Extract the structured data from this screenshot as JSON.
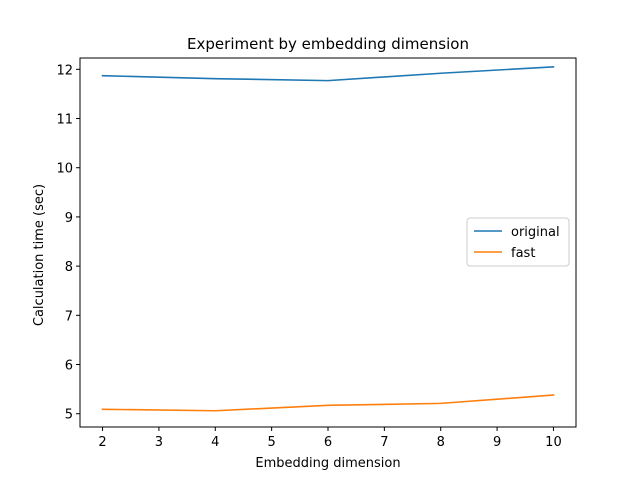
{
  "chart_data": {
    "type": "line",
    "title": "Experiment by embedding dimension",
    "xlabel": "Embedding dimension",
    "ylabel": "Calculation time (sec)",
    "x": [
      2,
      4,
      6,
      8,
      10
    ],
    "xlim": [
      1.6,
      10.4
    ],
    "ylim": [
      4.73,
      12.23
    ],
    "xticks": [
      2,
      3,
      4,
      5,
      6,
      7,
      8,
      9,
      10
    ],
    "yticks": [
      5,
      6,
      7,
      8,
      9,
      10,
      11,
      12
    ],
    "grid": false,
    "legend_position": "center-right",
    "series": [
      {
        "name": "original",
        "color": "#1f77b4",
        "values": [
          11.87,
          11.81,
          11.77,
          11.92,
          12.05
        ]
      },
      {
        "name": "fast",
        "color": "#ff7f0e",
        "values": [
          5.09,
          5.06,
          5.17,
          5.21,
          5.38
        ]
      }
    ]
  }
}
